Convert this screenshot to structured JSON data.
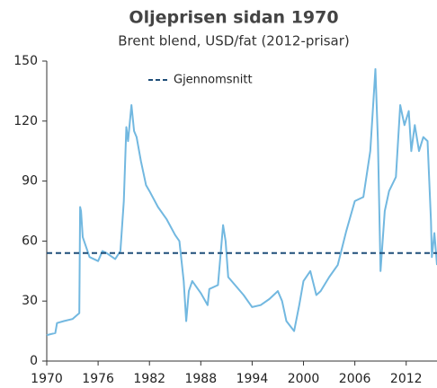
{
  "chart_data": {
    "type": "line",
    "title": "Oljeprisen sidan 1970",
    "subtitle": "Brent blend, USD/fat (2012-prisar)",
    "xlim": [
      1970,
      2015.6
    ],
    "xticks": [
      1970,
      1976,
      1982,
      1988,
      1994,
      2000,
      2006,
      2012
    ],
    "ylim": [
      0,
      150
    ],
    "yticks": [
      0,
      30,
      60,
      90,
      120,
      150
    ],
    "series": [
      {
        "color": "#72b8e0",
        "x": [
          1970,
          1971,
          1971.2,
          1972,
          1973,
          1973.8,
          1973.9,
          1974,
          1974.2,
          1975,
          1976,
          1976.5,
          1977,
          1978,
          1978.6,
          1979,
          1979.3,
          1979.5,
          1979.9,
          1980.2,
          1980.5,
          1981,
          1981.6,
          1982,
          1983,
          1984,
          1985,
          1985.5,
          1986,
          1986.3,
          1986.6,
          1987,
          1988,
          1988.8,
          1989,
          1990,
          1990.6,
          1990.9,
          1991.2,
          1992,
          1993,
          1994,
          1995,
          1996,
          1997,
          1997.5,
          1998,
          1998.9,
          1999.5,
          2000,
          2000.8,
          2001.5,
          2002,
          2003,
          2004,
          2005,
          2006,
          2007,
          2007.8,
          2008.4,
          2008.7,
          2009,
          2009.5,
          2010,
          2010.8,
          2011.3,
          2011.8,
          2012.3,
          2012.6,
          2013,
          2013.5,
          2014,
          2014.5,
          2014.9,
          2015,
          2015.3,
          2015.6
        ],
        "values": [
          13,
          14,
          19,
          20,
          21,
          24,
          77,
          75,
          62,
          52,
          50,
          55,
          54,
          51,
          55,
          80,
          117,
          110,
          128,
          115,
          112,
          100,
          88,
          85,
          77,
          71,
          63,
          60,
          40,
          20,
          35,
          40,
          34,
          28,
          36,
          38,
          68,
          60,
          42,
          38,
          33,
          27,
          28,
          31,
          35,
          30,
          20,
          15,
          28,
          40,
          45,
          33,
          35,
          42,
          48,
          65,
          80,
          82,
          105,
          146,
          110,
          45,
          75,
          85,
          92,
          128,
          118,
          125,
          105,
          118,
          105,
          112,
          110,
          70,
          52,
          64,
          48
        ]
      }
    ],
    "average": {
      "name": "Gjennomsnitt",
      "value": 54,
      "color": "#1f4e79"
    }
  }
}
